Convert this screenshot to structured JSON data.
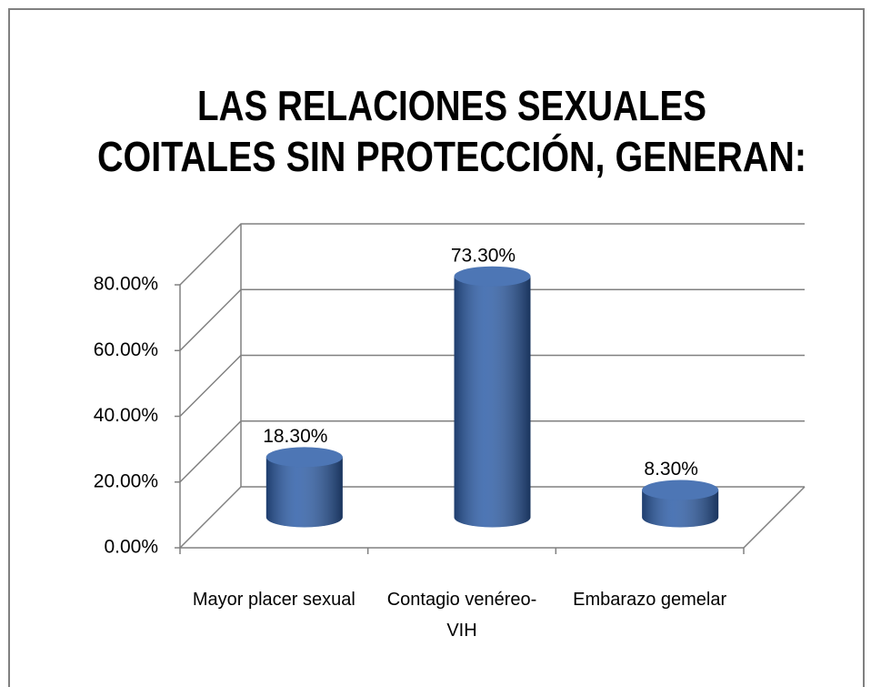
{
  "chart_data": {
    "type": "bar3d",
    "title": [
      "LAS RELACIONES SEXUALES",
      "COITALES SIN PROTECCIÓN, GENERAN:"
    ],
    "categories": [
      "Mayor placer sexual",
      "Contagio venéreo-VIH",
      "Embarazo gemelar"
    ],
    "values": [
      18.3,
      73.3,
      8.3
    ],
    "value_labels": [
      "18.30%",
      "73.30%",
      "8.30%"
    ],
    "color": "#2e5ea8",
    "ylim": [
      0,
      80
    ],
    "yticks": [
      {
        "value": 0,
        "label": "0.00%"
      },
      {
        "value": 20,
        "label": "20.00%"
      },
      {
        "value": 40,
        "label": "40.00%"
      },
      {
        "value": 60,
        "label": "60.00%"
      },
      {
        "value": 80,
        "label": "80.00%"
      }
    ],
    "grid": true
  }
}
